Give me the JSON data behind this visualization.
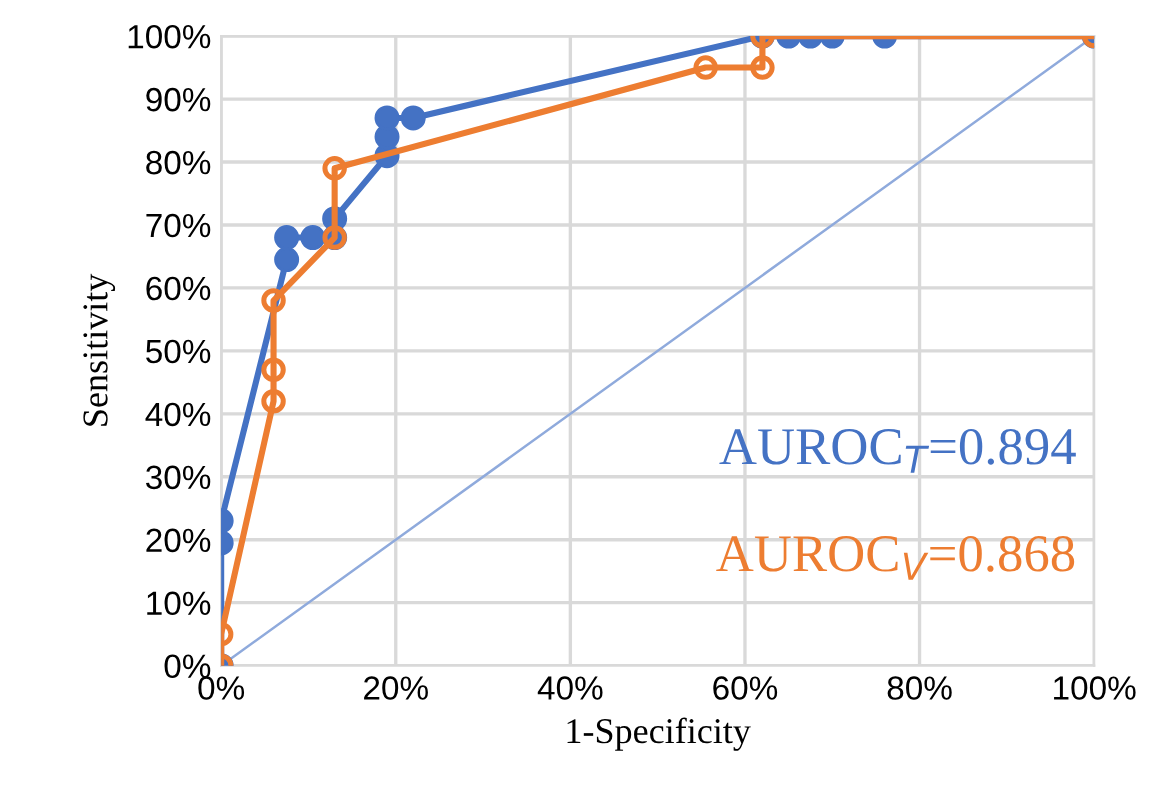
{
  "chart_data": {
    "type": "line",
    "xlabel": "1-Specificity",
    "ylabel": "Sensitivity",
    "xlim": [
      0,
      100
    ],
    "ylim": [
      0,
      100
    ],
    "xticks": [
      {
        "value": 0,
        "label": "0%"
      },
      {
        "value": 20,
        "label": "20%"
      },
      {
        "value": 40,
        "label": "40%"
      },
      {
        "value": 60,
        "label": "60%"
      },
      {
        "value": 80,
        "label": "80%"
      },
      {
        "value": 100,
        "label": "100%"
      }
    ],
    "yticks": [
      {
        "value": 0,
        "label": "0%"
      },
      {
        "value": 10,
        "label": "10%"
      },
      {
        "value": 20,
        "label": "20%"
      },
      {
        "value": 30,
        "label": "30%"
      },
      {
        "value": 40,
        "label": "40%"
      },
      {
        "value": 50,
        "label": "50%"
      },
      {
        "value": 60,
        "label": "60%"
      },
      {
        "value": 70,
        "label": "70%"
      },
      {
        "value": 80,
        "label": "80%"
      },
      {
        "value": 90,
        "label": "90%"
      },
      {
        "value": 100,
        "label": "100%"
      }
    ],
    "grid": true,
    "legend": false,
    "series": [
      {
        "color": "#4472c4",
        "marker": "circle",
        "x": [
          0,
          0,
          0,
          7.5,
          7.5,
          10.5,
          13,
          13,
          19,
          19,
          19,
          22,
          62,
          65,
          67.5,
          70,
          76,
          100
        ],
        "values": [
          0,
          19.5,
          23,
          64.5,
          68,
          68,
          68,
          71,
          81,
          84,
          87,
          87,
          100,
          100,
          100,
          100,
          100,
          100
        ]
      },
      {
        "color": "#ed7d31",
        "marker": "circle",
        "x": [
          0,
          0,
          6,
          6,
          6,
          13,
          13,
          55.5,
          62,
          62,
          100
        ],
        "values": [
          0,
          5,
          42,
          47,
          58,
          68,
          79,
          95,
          95,
          100,
          100
        ]
      },
      {
        "color": "#8faadc",
        "marker": "none",
        "x": [
          0,
          100
        ],
        "values": [
          0,
          100
        ]
      }
    ],
    "annotations": [
      "AUROC$_{T}$=0.894",
      "AUROC$_{V}$=0.868"
    ]
  }
}
